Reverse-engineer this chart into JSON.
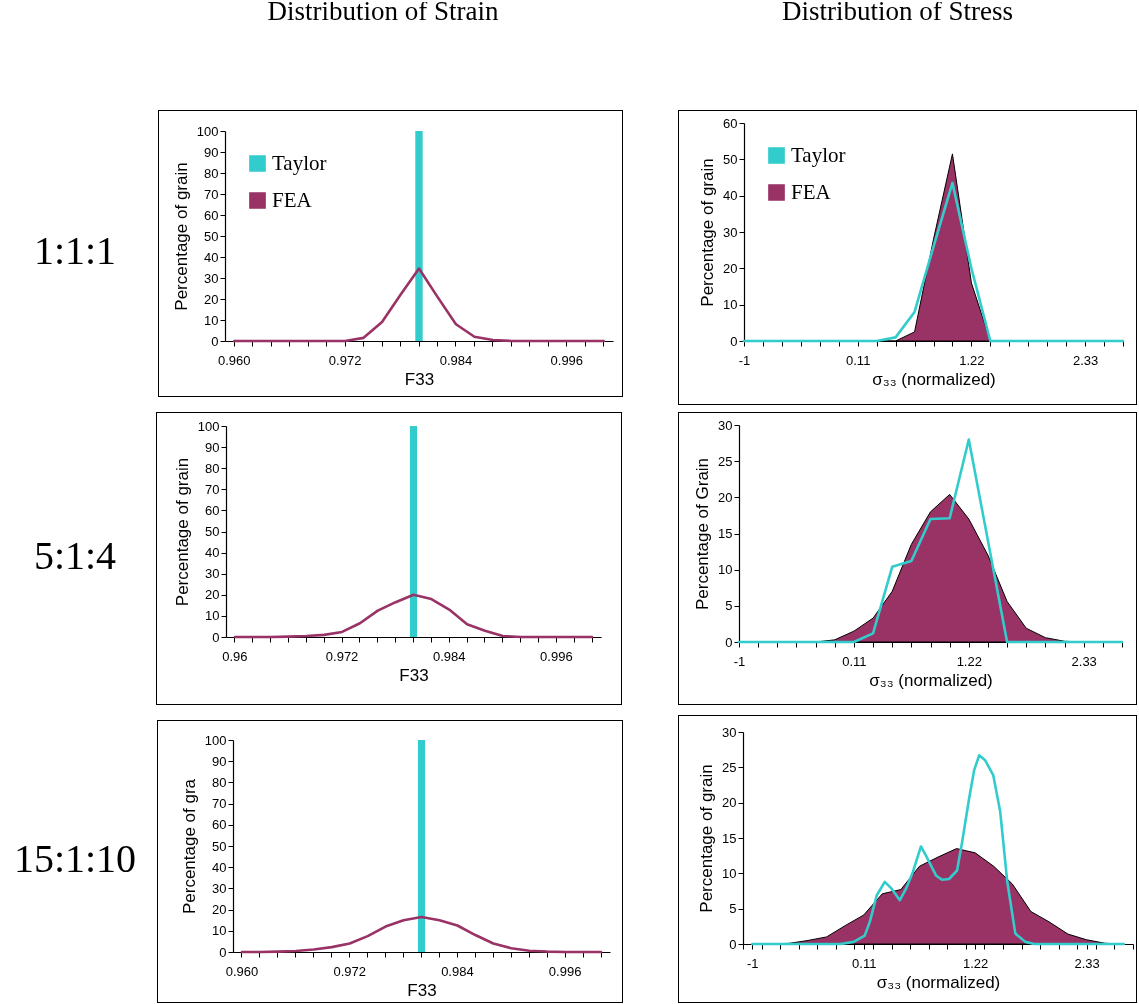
{
  "chart_data": [
    {
      "type": "bar",
      "title": "Distribution of Strain",
      "annotations": [
        "1:1:1"
      ],
      "xlabel": "F33",
      "ylabel": "Percentage of grain",
      "legend": "top left",
      "categories": [
        "0.960",
        null,
        null,
        null,
        null,
        null,
        "0.972",
        null,
        null,
        null,
        null,
        null,
        "0.984",
        null,
        null,
        null,
        null,
        null,
        "0.996",
        null,
        null
      ],
      "series": [
        {
          "name": "Taylor",
          "color": "#33cccc",
          "values": [
            0,
            0,
            0,
            0,
            0,
            0,
            0,
            0,
            0,
            0,
            100,
            0,
            0,
            0,
            0,
            0,
            0,
            0,
            0,
            0,
            0
          ]
        },
        {
          "name": "FEA",
          "type": "line",
          "color": "#993366",
          "values": [
            0,
            0,
            0,
            0,
            0,
            0,
            0,
            1.5,
            9,
            22,
            34.5,
            21,
            8,
            2,
            0.5,
            0,
            0,
            0,
            0,
            0,
            0
          ]
        }
      ],
      "ylim": [
        0,
        100
      ],
      "yticks": [
        0,
        10,
        20,
        30,
        40,
        50,
        60,
        70,
        80,
        90,
        100
      ]
    },
    {
      "type": "area",
      "title": "Distribution of Stress",
      "xlabel": "σ₃₃ (normalized)",
      "ylabel": "Percentage of grain",
      "legend": "top left",
      "x": [
        -1,
        -0.815,
        -0.63,
        -0.445,
        -0.26,
        -0.075,
        0.11,
        0.295,
        0.48,
        0.665,
        0.85,
        1.035,
        1.22,
        1.405,
        1.59,
        1.775,
        1.96,
        2.145,
        2.33,
        2.515,
        2.7
      ],
      "series": [
        {
          "name": "Taylor",
          "type": "line",
          "color": "#33cccc",
          "values": [
            0,
            0,
            0,
            0,
            0,
            0,
            0,
            0,
            1,
            8,
            26,
            43.5,
            20,
            0,
            0,
            0,
            0,
            0,
            0,
            0,
            0
          ]
        },
        {
          "name": "FEA",
          "color": "#993366",
          "values": [
            0,
            0,
            0,
            0,
            0,
            0,
            0,
            0,
            0,
            2.5,
            28,
            51.5,
            16,
            0,
            0,
            0,
            0,
            0,
            0,
            0,
            0
          ]
        }
      ],
      "xlim": [
        -1,
        2.7
      ],
      "xticks": [
        -1,
        {
          "value": -0.815,
          "label": null
        },
        {
          "value": -0.63,
          "label": null
        },
        {
          "value": -0.445,
          "label": null
        },
        {
          "value": -0.26,
          "label": null
        },
        {
          "value": -0.075,
          "label": null
        },
        0.11,
        {
          "value": 0.295,
          "label": null
        },
        {
          "value": 0.48,
          "label": null
        },
        {
          "value": 0.665,
          "label": null
        },
        {
          "value": 0.85,
          "label": null
        },
        {
          "value": 1.035,
          "label": null
        },
        1.22,
        {
          "value": 1.405,
          "label": null
        },
        {
          "value": 1.59,
          "label": null
        },
        {
          "value": 1.775,
          "label": null
        },
        {
          "value": 1.96,
          "label": null
        },
        {
          "value": 2.145,
          "label": null
        },
        2.33,
        {
          "value": 2.515,
          "label": null
        },
        {
          "value": 2.7,
          "label": null
        }
      ],
      "ylim": [
        0,
        60
      ],
      "yticks": [
        0,
        10,
        20,
        30,
        40,
        50,
        60
      ]
    },
    {
      "type": "bar",
      "annotations": [
        "5:1:4"
      ],
      "xlabel": "F33",
      "ylabel": "Percentage of grain",
      "categories": [
        "0.96",
        null,
        null,
        null,
        null,
        null,
        "0.972",
        null,
        null,
        null,
        null,
        null,
        "0.984",
        null,
        null,
        null,
        null,
        null,
        "0.996",
        null,
        null
      ],
      "series": [
        {
          "color": "#33cccc",
          "values": [
            0,
            0,
            0,
            0,
            0,
            0,
            0,
            0,
            0,
            0,
            100,
            0,
            0,
            0,
            0,
            0,
            0,
            0,
            0,
            0,
            0
          ]
        },
        {
          "type": "line",
          "color": "#993366",
          "values": [
            0,
            0,
            0,
            0.2,
            0.5,
            1,
            2.4,
            6.5,
            12.5,
            16.5,
            20,
            18,
            13,
            6,
            3,
            0.5,
            0,
            0,
            0,
            0,
            0
          ]
        }
      ],
      "ylim": [
        0,
        100
      ],
      "yticks": [
        0,
        10,
        20,
        30,
        40,
        50,
        60,
        70,
        80,
        90,
        100
      ]
    },
    {
      "type": "area",
      "xlabel": "σ₃₃ (normalized)",
      "ylabel": "Percentage of Grain",
      "x": [
        -1,
        -0.815,
        -0.63,
        -0.445,
        -0.26,
        -0.075,
        0.11,
        0.295,
        0.48,
        0.665,
        0.85,
        1.035,
        1.22,
        1.405,
        1.59,
        1.775,
        1.96,
        2.145,
        2.33,
        2.515,
        2.7
      ],
      "series": [
        {
          "type": "line",
          "color": "#33cccc",
          "values": [
            0,
            0,
            0,
            0,
            0,
            0,
            0,
            1.2,
            10.4,
            11.2,
            17,
            17.1,
            28,
            14,
            0,
            0,
            0,
            0,
            0,
            0,
            0
          ]
        },
        {
          "color": "#993366",
          "values": [
            0,
            0,
            0,
            0,
            0,
            0.3,
            1.5,
            3.3,
            7,
            13.5,
            18,
            20.4,
            17,
            12,
            5.6,
            1.9,
            0.6,
            0.1,
            0,
            0,
            0
          ]
        }
      ],
      "xlim": [
        -1,
        2.7
      ],
      "xticks": [
        -1,
        {
          "value": -0.815,
          "label": null
        },
        {
          "value": -0.63,
          "label": null
        },
        {
          "value": -0.445,
          "label": null
        },
        {
          "value": -0.26,
          "label": null
        },
        {
          "value": -0.075,
          "label": null
        },
        0.11,
        {
          "value": 0.295,
          "label": null
        },
        {
          "value": 0.48,
          "label": null
        },
        {
          "value": 0.665,
          "label": null
        },
        {
          "value": 0.85,
          "label": null
        },
        {
          "value": 1.035,
          "label": null
        },
        1.22,
        {
          "value": 1.405,
          "label": null
        },
        {
          "value": 1.59,
          "label": null
        },
        {
          "value": 1.775,
          "label": null
        },
        {
          "value": 1.96,
          "label": null
        },
        {
          "value": 2.145,
          "label": null
        },
        2.33,
        {
          "value": 2.515,
          "label": null
        },
        {
          "value": 2.7,
          "label": null
        }
      ],
      "ylim": [
        0,
        30
      ],
      "yticks": [
        0,
        5,
        10,
        15,
        20,
        25,
        30
      ]
    },
    {
      "type": "bar",
      "annotations": [
        "15:1:10"
      ],
      "xlabel": "F33",
      "ylabel": "Percentage of gra",
      "categories": [
        "0.960",
        null,
        null,
        null,
        null,
        null,
        "0.972",
        null,
        null,
        null,
        null,
        null,
        "0.984",
        null,
        null,
        null,
        null,
        null,
        "0.996",
        null,
        null
      ],
      "series": [
        {
          "color": "#33cccc",
          "values": [
            0,
            0,
            0,
            0,
            0,
            0,
            0,
            0,
            0,
            0,
            100,
            0,
            0,
            0,
            0,
            0,
            0,
            0,
            0,
            0,
            0
          ]
        },
        {
          "type": "line",
          "color": "#993366",
          "values": [
            0,
            0,
            0.2,
            0.5,
            1.2,
            2.3,
            4,
            7.5,
            12,
            15,
            16.5,
            15,
            12.5,
            8,
            4,
            1.8,
            0.6,
            0.2,
            0,
            0,
            0
          ]
        }
      ],
      "ylim": [
        0,
        100
      ],
      "yticks": [
        0,
        10,
        20,
        30,
        40,
        50,
        60,
        70,
        80,
        90,
        100
      ]
    },
    {
      "type": "area",
      "xlabel": "σ₃₃ (normalized)",
      "ylabel": "Percentage of grain",
      "x": [
        -1,
        -0.815,
        -0.63,
        -0.445,
        -0.26,
        -0.075,
        0.11,
        0.295,
        0.48,
        0.665,
        0.85,
        1.035,
        1.22,
        1.405,
        1.59,
        1.775,
        1.96,
        2.145,
        2.33,
        2.515,
        2.7
      ],
      "series": [
        {
          "type": "line",
          "color": "#33cccc",
          "x": [
            -1,
            -0.12,
            0.01,
            0.12,
            0.17,
            0.24,
            0.32,
            0.39,
            0.47,
            0.53,
            0.6,
            0.68,
            0.73,
            0.83,
            0.89,
            0.96,
            1.04,
            1.09,
            1.16,
            1.21,
            1.26,
            1.32,
            1.4,
            1.47,
            1.54,
            1.62,
            1.72,
            1.81,
            2.7
          ],
          "values": [
            0,
            0,
            0.3,
            1.2,
            3.1,
            6.9,
            8.8,
            7.8,
            6.2,
            7.8,
            10.2,
            13.8,
            12.5,
            9.7,
            9.1,
            9.2,
            10.4,
            14.4,
            20.6,
            24.6,
            26.7,
            26,
            23.9,
            18.7,
            8.8,
            1.5,
            0.3,
            0,
            0
          ]
        },
        {
          "color": "#993366",
          "values": [
            0,
            0,
            0.1,
            0.5,
            1,
            2.6,
            4.1,
            7.1,
            7.7,
            11,
            12.3,
            13.5,
            12.9,
            11,
            8.5,
            4.6,
            3.1,
            1.4,
            0.6,
            0.1,
            0
          ]
        }
      ],
      "xlim": [
        -1.0925,
        2.7925
      ],
      "xticks": [
        {
          "value": -1.0925,
          "label": null
        },
        -1,
        {
          "value": -0.9075,
          "label": null
        },
        {
          "value": -0.7225,
          "label": null
        },
        {
          "value": -0.5375,
          "label": null
        },
        {
          "value": -0.3525,
          "label": null
        },
        {
          "value": -0.1675,
          "label": null
        },
        {
          "value": 0.0175,
          "label": null
        },
        0.11,
        {
          "value": 0.2025,
          "label": null
        },
        {
          "value": 0.3875,
          "label": null
        },
        {
          "value": 0.5725,
          "label": null
        },
        {
          "value": 0.7575,
          "label": null
        },
        {
          "value": 0.9425,
          "label": null
        },
        {
          "value": 1.1275,
          "label": null
        },
        1.22,
        {
          "value": 1.3125,
          "label": null
        },
        {
          "value": 1.4975,
          "label": null
        },
        {
          "value": 1.6825,
          "label": null
        },
        {
          "value": 1.8675,
          "label": null
        },
        {
          "value": 2.0525,
          "label": null
        },
        {
          "value": 2.2375,
          "label": null
        },
        2.33,
        {
          "value": 2.4225,
          "label": null
        },
        {
          "value": 2.6075,
          "label": null
        },
        {
          "value": 2.7925,
          "label": null
        }
      ],
      "ylim": [
        0,
        30
      ],
      "yticks": [
        0,
        5,
        10,
        15,
        20,
        25,
        30
      ]
    }
  ]
}
